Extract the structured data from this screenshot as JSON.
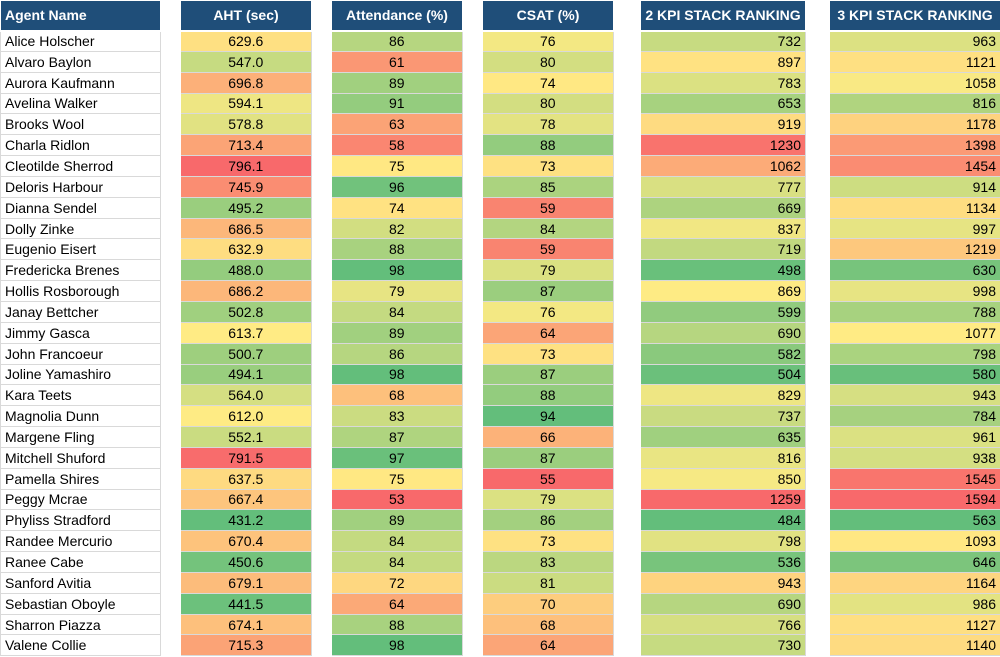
{
  "headers": {
    "name": "Agent Name",
    "aht": "AHT (sec)",
    "attendance": "Attendance (%)",
    "csat": "CSAT (%)",
    "kpi2": "2 KPI  STACK RANKING",
    "kpi3": "3 KPI STACK RANKING"
  },
  "rows": [
    {
      "name": "Alice Holscher",
      "aht": "629.6",
      "attendance": "86",
      "csat": "76",
      "kpi2": "732",
      "kpi3": "963"
    },
    {
      "name": "Alvaro Baylon",
      "aht": "547.0",
      "attendance": "61",
      "csat": "80",
      "kpi2": "897",
      "kpi3": "1121"
    },
    {
      "name": "Aurora Kaufmann",
      "aht": "696.8",
      "attendance": "89",
      "csat": "74",
      "kpi2": "783",
      "kpi3": "1058"
    },
    {
      "name": "Avelina Walker",
      "aht": "594.1",
      "attendance": "91",
      "csat": "80",
      "kpi2": "653",
      "kpi3": "816"
    },
    {
      "name": "Brooks Wool",
      "aht": "578.8",
      "attendance": "63",
      "csat": "78",
      "kpi2": "919",
      "kpi3": "1178"
    },
    {
      "name": "Charla Ridlon",
      "aht": "713.4",
      "attendance": "58",
      "csat": "88",
      "kpi2": "1230",
      "kpi3": "1398"
    },
    {
      "name": "Cleotilde Sherrod",
      "aht": "796.1",
      "attendance": "75",
      "csat": "73",
      "kpi2": "1062",
      "kpi3": "1454"
    },
    {
      "name": "Deloris Harbour",
      "aht": "745.9",
      "attendance": "96",
      "csat": "85",
      "kpi2": "777",
      "kpi3": "914"
    },
    {
      "name": "Dianna Sendel",
      "aht": "495.2",
      "attendance": "74",
      "csat": "59",
      "kpi2": "669",
      "kpi3": "1134"
    },
    {
      "name": "Dolly Zinke",
      "aht": "686.5",
      "attendance": "82",
      "csat": "84",
      "kpi2": "837",
      "kpi3": "997"
    },
    {
      "name": "Eugenio Eisert",
      "aht": "632.9",
      "attendance": "88",
      "csat": "59",
      "kpi2": "719",
      "kpi3": "1219"
    },
    {
      "name": "Fredericka Brenes",
      "aht": "488.0",
      "attendance": "98",
      "csat": "79",
      "kpi2": "498",
      "kpi3": "630"
    },
    {
      "name": "Hollis Rosborough",
      "aht": "686.2",
      "attendance": "79",
      "csat": "87",
      "kpi2": "869",
      "kpi3": "998"
    },
    {
      "name": "Janay Bettcher",
      "aht": "502.8",
      "attendance": "84",
      "csat": "76",
      "kpi2": "599",
      "kpi3": "788"
    },
    {
      "name": "Jimmy Gasca",
      "aht": "613.7",
      "attendance": "89",
      "csat": "64",
      "kpi2": "690",
      "kpi3": "1077"
    },
    {
      "name": "John Francoeur",
      "aht": "500.7",
      "attendance": "86",
      "csat": "73",
      "kpi2": "582",
      "kpi3": "798"
    },
    {
      "name": "Joline Yamashiro",
      "aht": "494.1",
      "attendance": "98",
      "csat": "87",
      "kpi2": "504",
      "kpi3": "580"
    },
    {
      "name": "Kara Teets",
      "aht": "564.0",
      "attendance": "68",
      "csat": "88",
      "kpi2": "829",
      "kpi3": "943"
    },
    {
      "name": "Magnolia Dunn",
      "aht": "612.0",
      "attendance": "83",
      "csat": "94",
      "kpi2": "737",
      "kpi3": "784"
    },
    {
      "name": "Margene Fling",
      "aht": "552.1",
      "attendance": "87",
      "csat": "66",
      "kpi2": "635",
      "kpi3": "961"
    },
    {
      "name": "Mitchell Shuford",
      "aht": "791.5",
      "attendance": "97",
      "csat": "87",
      "kpi2": "816",
      "kpi3": "938"
    },
    {
      "name": "Pamella Shires",
      "aht": "637.5",
      "attendance": "75",
      "csat": "55",
      "kpi2": "850",
      "kpi3": "1545"
    },
    {
      "name": "Peggy Mcrae",
      "aht": "667.4",
      "attendance": "53",
      "csat": "79",
      "kpi2": "1259",
      "kpi3": "1594"
    },
    {
      "name": "Phyliss Stradford",
      "aht": "431.2",
      "attendance": "89",
      "csat": "86",
      "kpi2": "484",
      "kpi3": "563"
    },
    {
      "name": "Randee Mercurio",
      "aht": "670.4",
      "attendance": "84",
      "csat": "73",
      "kpi2": "798",
      "kpi3": "1093"
    },
    {
      "name": "Ranee Cabe",
      "aht": "450.6",
      "attendance": "84",
      "csat": "83",
      "kpi2": "536",
      "kpi3": "646"
    },
    {
      "name": "Sanford Avitia",
      "aht": "679.1",
      "attendance": "72",
      "csat": "81",
      "kpi2": "943",
      "kpi3": "1164"
    },
    {
      "name": "Sebastian Oboyle",
      "aht": "441.5",
      "attendance": "64",
      "csat": "70",
      "kpi2": "690",
      "kpi3": "986"
    },
    {
      "name": "Sharron Piazza",
      "aht": "674.1",
      "attendance": "88",
      "csat": "68",
      "kpi2": "766",
      "kpi3": "1127"
    },
    {
      "name": "Valene Collie",
      "aht": "715.3",
      "attendance": "98",
      "csat": "64",
      "kpi2": "730",
      "kpi3": "1140"
    }
  ],
  "colors": {
    "header_bg": "#1f4e79",
    "scale_good": "#63be7b",
    "scale_mid": "#ffeb84",
    "scale_bad": "#f8696b"
  }
}
